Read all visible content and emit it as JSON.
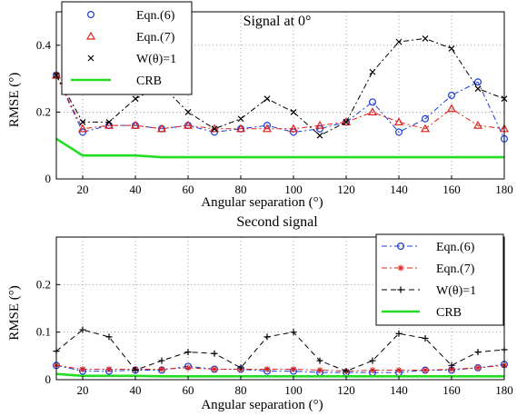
{
  "chart_data": [
    {
      "type": "line",
      "title": "Signal at 0°",
      "xlabel": "Angular separation (°)",
      "ylabel": "RMSE (°)",
      "xlim": [
        10,
        180
      ],
      "ylim": [
        0,
        0.5
      ],
      "xticks": [
        20,
        40,
        60,
        80,
        100,
        120,
        140,
        160,
        180
      ],
      "yticks": [
        0,
        0.2,
        0.4
      ],
      "ytick_labels": [
        "0",
        "0.2",
        "0.4"
      ],
      "grid": "dotted",
      "legend_position": "top-left",
      "x": [
        10,
        20,
        30,
        40,
        50,
        60,
        70,
        80,
        90,
        100,
        110,
        120,
        130,
        140,
        150,
        160,
        170,
        180
      ],
      "series": [
        {
          "name": "Eqn.(6)",
          "color": "#1a3dd6",
          "marker": "circle",
          "line": "dash-dot",
          "values": [
            0.31,
            0.14,
            0.16,
            0.16,
            0.15,
            0.16,
            0.14,
            0.15,
            0.16,
            0.14,
            0.15,
            0.17,
            0.23,
            0.14,
            0.18,
            0.25,
            0.29,
            0.12
          ]
        },
        {
          "name": "Eqn.(7)",
          "color": "#e0201a",
          "marker": "triangle",
          "line": "dash-dot",
          "values": [
            0.31,
            0.15,
            0.16,
            0.16,
            0.15,
            0.16,
            0.15,
            0.15,
            0.15,
            0.15,
            0.16,
            0.17,
            0.2,
            0.17,
            0.15,
            0.21,
            0.16,
            0.15
          ]
        },
        {
          "name": "W(θ)=1",
          "color": "#000000",
          "marker": "cross",
          "line": "dash-dot",
          "values": [
            0.31,
            0.17,
            0.17,
            0.24,
            0.28,
            0.2,
            0.15,
            0.18,
            0.24,
            0.2,
            0.13,
            0.17,
            0.32,
            0.41,
            0.42,
            0.39,
            0.27,
            0.24
          ]
        },
        {
          "name": "CRB",
          "color": "#22dd22",
          "marker": "none",
          "line": "solid",
          "values": [
            0.12,
            0.07,
            0.07,
            0.07,
            0.065,
            0.065,
            0.065,
            0.065,
            0.065,
            0.065,
            0.065,
            0.065,
            0.065,
            0.065,
            0.065,
            0.065,
            0.065,
            0.065
          ]
        }
      ]
    },
    {
      "type": "line",
      "title": "Second signal",
      "xlabel": "Angular separation (°)",
      "ylabel": "RMSE (°)",
      "xlim": [
        10,
        180
      ],
      "ylim": [
        0,
        0.3
      ],
      "xticks": [
        20,
        40,
        60,
        80,
        100,
        120,
        140,
        160,
        180
      ],
      "yticks": [
        0,
        0.1,
        0.2
      ],
      "ytick_labels": [
        "0",
        "0.1",
        "0.2"
      ],
      "grid": "dotted",
      "legend_position": "top-right",
      "x": [
        10,
        20,
        30,
        40,
        50,
        60,
        70,
        80,
        90,
        100,
        110,
        120,
        130,
        140,
        150,
        160,
        170,
        180
      ],
      "series": [
        {
          "name": "Eqn.(6)",
          "color": "#1a3dd6",
          "marker": "circle",
          "line": "dash-dot",
          "values": [
            0.03,
            0.018,
            0.018,
            0.02,
            0.02,
            0.028,
            0.022,
            0.022,
            0.018,
            0.018,
            0.015,
            0.015,
            0.015,
            0.015,
            0.02,
            0.02,
            0.025,
            0.032
          ]
        },
        {
          "name": "Eqn.(7)",
          "color": "#e0201a",
          "marker": "star",
          "line": "dash-dot",
          "values": [
            0.03,
            0.022,
            0.022,
            0.022,
            0.022,
            0.025,
            0.022,
            0.022,
            0.022,
            0.022,
            0.02,
            0.018,
            0.02,
            0.02,
            0.02,
            0.022,
            0.025,
            0.03
          ]
        },
        {
          "name": "W(θ)=1",
          "color": "#000000",
          "marker": "plus",
          "line": "dash",
          "values": [
            0.06,
            0.105,
            0.09,
            0.02,
            0.04,
            0.058,
            0.055,
            0.025,
            0.09,
            0.1,
            0.04,
            0.018,
            0.04,
            0.097,
            0.087,
            0.03,
            0.058,
            0.063
          ]
        },
        {
          "name": "CRB",
          "color": "#22dd22",
          "marker": "none",
          "line": "solid",
          "values": [
            0.012,
            0.008,
            0.008,
            0.008,
            0.007,
            0.007,
            0.007,
            0.007,
            0.007,
            0.007,
            0.007,
            0.007,
            0.007,
            0.007,
            0.007,
            0.007,
            0.007,
            0.007
          ]
        }
      ]
    }
  ]
}
